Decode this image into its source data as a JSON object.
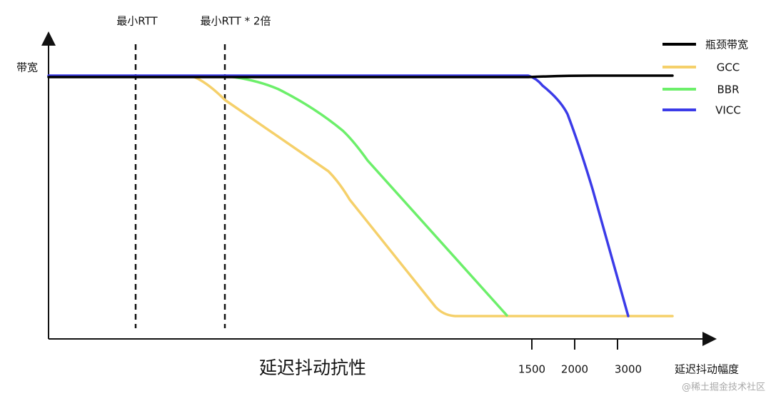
{
  "y_axis_label": "带宽",
  "markers": [
    "最小RTT",
    "最小RTT * 2倍"
  ],
  "legend": [
    "瓶颈带宽",
    "GCC",
    "BBR",
    "VICC"
  ],
  "x_ticks": [
    "1500",
    "2000",
    "3000"
  ],
  "x_axis_label": "延迟抖动幅度",
  "title": "延迟抖动抗性",
  "watermark": "@稀土掘金技术社区"
}
